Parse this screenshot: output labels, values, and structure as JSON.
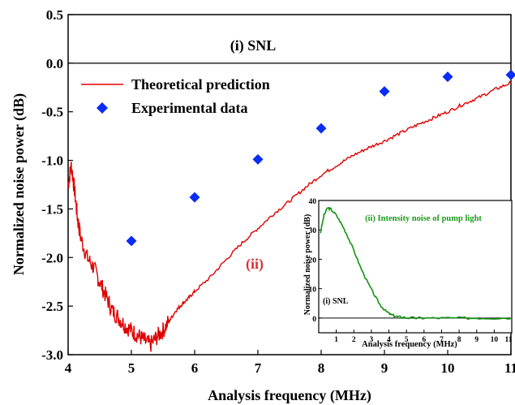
{
  "chart_data": [
    {
      "type": "line",
      "xlabel": "Analysis frequency (MHz)",
      "ylabel": "Normalized noise power (dB)",
      "xlim": [
        4,
        11
      ],
      "ylim": [
        -3.0,
        0.5
      ],
      "x_ticks": [
        "4",
        "5",
        "6",
        "7",
        "8",
        "9",
        "10",
        "11"
      ],
      "y_ticks": [
        "0.5",
        "0.0",
        "-0.5",
        "-1.0",
        "-1.5",
        "-2.0",
        "-2.5",
        "-3.0"
      ],
      "annotations": {
        "snl": "(i) SNL",
        "curve_label": "(ii)"
      },
      "legend_position": "top-left",
      "colors": {
        "theory": "#e00000",
        "experiment": "#0a2cf5",
        "ii_label": "#e03030"
      },
      "series": [
        {
          "name": "Theoretical prediction",
          "style": "line",
          "x": [
            4.0,
            4.05,
            4.1,
            4.15,
            4.2,
            4.3,
            4.4,
            4.5,
            4.6,
            4.7,
            4.8,
            4.9,
            5.0,
            5.1,
            5.2,
            5.3,
            5.4,
            5.5,
            5.6,
            5.7,
            5.8,
            5.9,
            6.0,
            6.25,
            6.5,
            6.75,
            7.0,
            7.25,
            7.5,
            7.75,
            8.0,
            8.25,
            8.5,
            8.75,
            9.0,
            9.25,
            9.5,
            9.75,
            10.0,
            10.25,
            10.5,
            10.75,
            11.0
          ],
          "y": [
            -1.25,
            -1.05,
            -1.3,
            -1.6,
            -1.8,
            -2.0,
            -2.1,
            -2.25,
            -2.4,
            -2.55,
            -2.62,
            -2.7,
            -2.75,
            -2.8,
            -2.85,
            -2.9,
            -2.82,
            -2.75,
            -2.65,
            -2.55,
            -2.48,
            -2.42,
            -2.35,
            -2.2,
            -2.02,
            -1.85,
            -1.7,
            -1.55,
            -1.42,
            -1.28,
            -1.15,
            -1.05,
            -0.95,
            -0.87,
            -0.8,
            -0.72,
            -0.64,
            -0.57,
            -0.5,
            -0.42,
            -0.35,
            -0.27,
            -0.2
          ]
        },
        {
          "name": "Experimental data",
          "style": "scatter",
          "x": [
            5,
            6,
            7,
            8,
            9,
            10,
            11
          ],
          "y": [
            -1.83,
            -1.38,
            -0.99,
            -0.67,
            -0.29,
            -0.14,
            -0.12
          ]
        }
      ]
    },
    {
      "type": "line",
      "title": "(ii) Intensity noise of pump light",
      "xlabel": "Analysis frequency (MHz)",
      "ylabel": "Normalized noise power (dB)",
      "xlim": [
        0,
        11
      ],
      "ylim": [
        -5,
        40
      ],
      "x_ticks": [
        "1",
        "2",
        "3",
        "4",
        "5",
        "6",
        "7",
        "8",
        "9",
        "10",
        "11"
      ],
      "y_ticks": [
        "40",
        "30",
        "20",
        "10",
        "0"
      ],
      "annotations": {
        "snl": "(i) SNL"
      },
      "colors": {
        "pump": "#129412",
        "title": "#1a9a1a"
      },
      "series": [
        {
          "style": "line",
          "x": [
            0.1,
            0.3,
            0.5,
            0.7,
            1.0,
            1.3,
            1.6,
            2.0,
            2.4,
            2.8,
            3.2,
            3.5,
            3.8,
            4.1,
            4.4,
            4.7,
            5.0,
            5.5,
            6.0,
            7.0,
            8.0,
            9.0,
            10.0,
            11.0
          ],
          "y": [
            29,
            35,
            37.5,
            37,
            35,
            32,
            28.5,
            23,
            17,
            12,
            7.5,
            4.5,
            2.5,
            1.2,
            0.6,
            0.3,
            0.1,
            0.0,
            0.0,
            0.0,
            0.0,
            0.0,
            0.0,
            0.0
          ]
        }
      ]
    }
  ]
}
